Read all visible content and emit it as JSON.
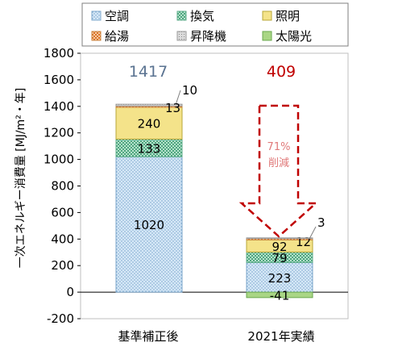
{
  "chart_data": {
    "type": "bar",
    "stacked": true,
    "ylabel": "一次エネルギー消費量 [MJ/m²・年]",
    "ylim": [
      -200,
      1800
    ],
    "yticks": [
      -200,
      0,
      200,
      400,
      600,
      800,
      1000,
      1200,
      1400,
      1600,
      1800
    ],
    "yticklabels": [
      "-200",
      "0",
      "200",
      "400",
      "600",
      "800",
      "1000",
      "1200",
      "1400",
      "1600",
      "1800"
    ],
    "categories": [
      "基準補正後",
      "2021年実績"
    ],
    "series": [
      {
        "name": "空調",
        "values": [
          1020,
          223
        ],
        "color": "#cfe3f4",
        "labels": [
          "1020",
          "223"
        ]
      },
      {
        "name": "換気",
        "values": [
          133,
          79
        ],
        "color": "#a3d9c2",
        "labels": [
          "133",
          "79"
        ]
      },
      {
        "name": "照明",
        "values": [
          240,
          92
        ],
        "color": "#f4e58a",
        "labels": [
          "240",
          "92"
        ]
      },
      {
        "name": "給湯",
        "values": [
          10,
          12
        ],
        "color": "#f3b07a",
        "labels": [
          "10",
          "12"
        ]
      },
      {
        "name": "昇降機",
        "values": [
          13,
          3
        ],
        "color": "#d0d0d0",
        "labels": [
          "13",
          "3"
        ]
      },
      {
        "name": "太陽光",
        "values": [
          0,
          -41
        ],
        "color": "#a9d685",
        "labels": [
          "",
          "-41"
        ]
      }
    ],
    "totals": [
      {
        "text": "1417",
        "color": "#5a7391"
      },
      {
        "text": "409",
        "color": "#c00000"
      }
    ],
    "legend": {
      "placement": "top",
      "columns": 3
    },
    "annotation": {
      "lines": [
        "71%",
        "削減"
      ],
      "color": "#c00000"
    },
    "grid": false
  }
}
